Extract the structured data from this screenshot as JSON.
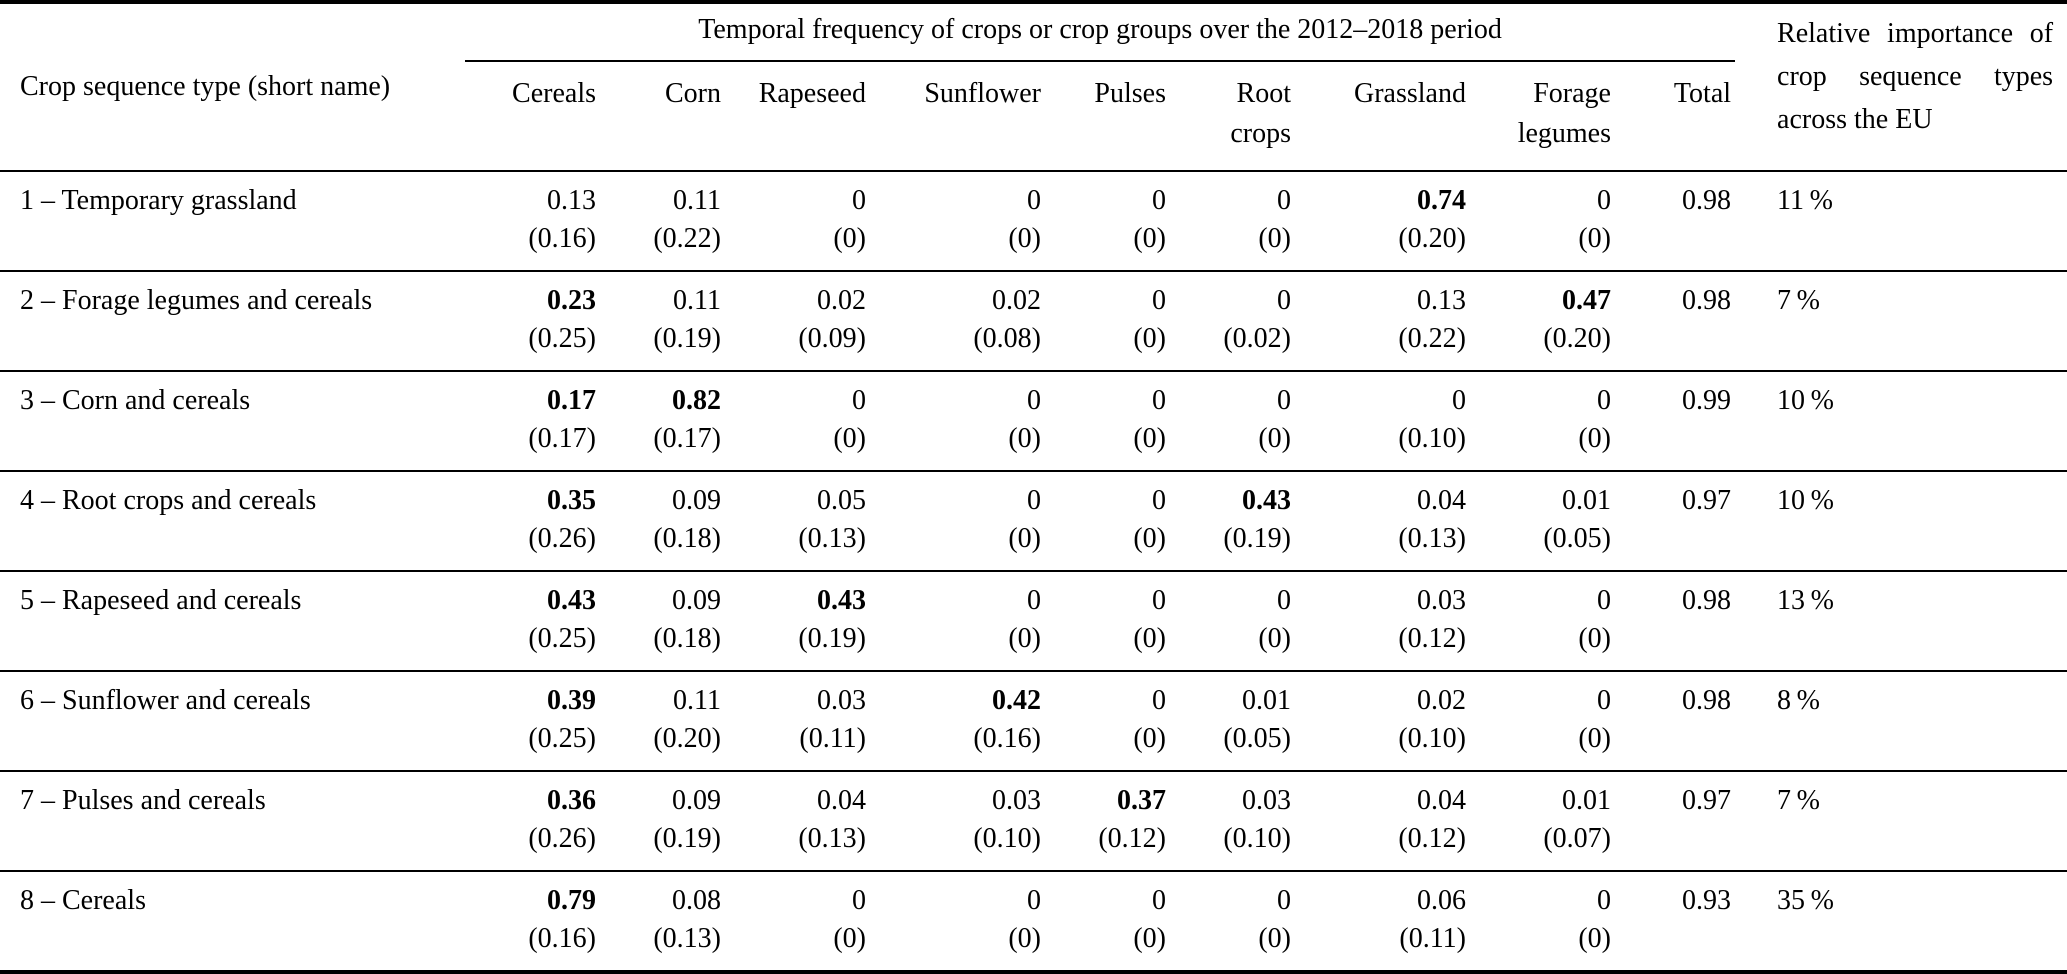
{
  "table": {
    "corner_header": "Crop sequence type (short name)",
    "group_header": "Temporal frequency of crops or crop groups over the 2012–2018 period",
    "columns": [
      "Cereals",
      "Corn",
      "Rapeseed",
      "Sunflower",
      "Pulses",
      "Root crops",
      "Grassland",
      "Forage legumes",
      "Total"
    ],
    "right_header": "Relative importance of crop sequence types across the EU",
    "rows": [
      {
        "name": "1 – Temporary grassland",
        "values": [
          "0.13",
          "0.11",
          "0",
          "0",
          "0",
          "0",
          "0.74",
          "0",
          "0.98"
        ],
        "sd": [
          "(0.16)",
          "(0.22)",
          "(0)",
          "(0)",
          "(0)",
          "(0)",
          "(0.20)",
          "(0)",
          ""
        ],
        "bold": [
          false,
          false,
          false,
          false,
          false,
          false,
          true,
          false,
          false
        ],
        "share": "11 %"
      },
      {
        "name": "2 – Forage legumes and cereals",
        "values": [
          "0.23",
          "0.11",
          "0.02",
          "0.02",
          "0",
          "0",
          "0.13",
          "0.47",
          "0.98"
        ],
        "sd": [
          "(0.25)",
          "(0.19)",
          "(0.09)",
          "(0.08)",
          "(0)",
          "(0.02)",
          "(0.22)",
          "(0.20)",
          ""
        ],
        "bold": [
          true,
          false,
          false,
          false,
          false,
          false,
          false,
          true,
          false
        ],
        "share": "7 %"
      },
      {
        "name": "3 – Corn and cereals",
        "values": [
          "0.17",
          "0.82",
          "0",
          "0",
          "0",
          "0",
          "0",
          "0",
          "0.99"
        ],
        "sd": [
          "(0.17)",
          "(0.17)",
          "(0)",
          "(0)",
          "(0)",
          "(0)",
          "(0.10)",
          "(0)",
          ""
        ],
        "bold": [
          true,
          true,
          false,
          false,
          false,
          false,
          false,
          false,
          false
        ],
        "share": "10 %"
      },
      {
        "name": "4 – Root crops and cereals",
        "values": [
          "0.35",
          "0.09",
          "0.05",
          "0",
          "0",
          "0.43",
          "0.04",
          "0.01",
          "0.97"
        ],
        "sd": [
          "(0.26)",
          "(0.18)",
          "(0.13)",
          "(0)",
          "(0)",
          "(0.19)",
          "(0.13)",
          "(0.05)",
          ""
        ],
        "bold": [
          true,
          false,
          false,
          false,
          false,
          true,
          false,
          false,
          false
        ],
        "share": "10 %"
      },
      {
        "name": "5 – Rapeseed and cereals",
        "values": [
          "0.43",
          "0.09",
          "0.43",
          "0",
          "0",
          "0",
          "0.03",
          "0",
          "0.98"
        ],
        "sd": [
          "(0.25)",
          "(0.18)",
          "(0.19)",
          "(0)",
          "(0)",
          "(0)",
          "(0.12)",
          "(0)",
          ""
        ],
        "bold": [
          true,
          false,
          true,
          false,
          false,
          false,
          false,
          false,
          false
        ],
        "share": "13 %"
      },
      {
        "name": "6 – Sunflower and cereals",
        "values": [
          "0.39",
          "0.11",
          "0.03",
          "0.42",
          "0",
          "0.01",
          "0.02",
          "0",
          "0.98"
        ],
        "sd": [
          "(0.25)",
          "(0.20)",
          "(0.11)",
          "(0.16)",
          "(0)",
          "(0.05)",
          "(0.10)",
          "(0)",
          ""
        ],
        "bold": [
          true,
          false,
          false,
          true,
          false,
          false,
          false,
          false,
          false
        ],
        "share": "8 %"
      },
      {
        "name": "7 – Pulses and cereals",
        "values": [
          "0.36",
          "0.09",
          "0.04",
          "0.03",
          "0.37",
          "0.03",
          "0.04",
          "0.01",
          "0.97"
        ],
        "sd": [
          "(0.26)",
          "(0.19)",
          "(0.13)",
          "(0.10)",
          "(0.12)",
          "(0.10)",
          "(0.12)",
          "(0.07)",
          ""
        ],
        "bold": [
          true,
          false,
          false,
          false,
          true,
          false,
          false,
          false,
          false
        ],
        "share": "7 %"
      },
      {
        "name": "8 – Cereals",
        "values": [
          "0.79",
          "0.08",
          "0",
          "0",
          "0",
          "0",
          "0.06",
          "0",
          "0.93"
        ],
        "sd": [
          "(0.16)",
          "(0.13)",
          "(0)",
          "(0)",
          "(0)",
          "(0)",
          "(0.11)",
          "(0)",
          ""
        ],
        "bold": [
          true,
          false,
          false,
          false,
          false,
          false,
          false,
          false,
          false
        ],
        "share": "35 %"
      }
    ]
  }
}
